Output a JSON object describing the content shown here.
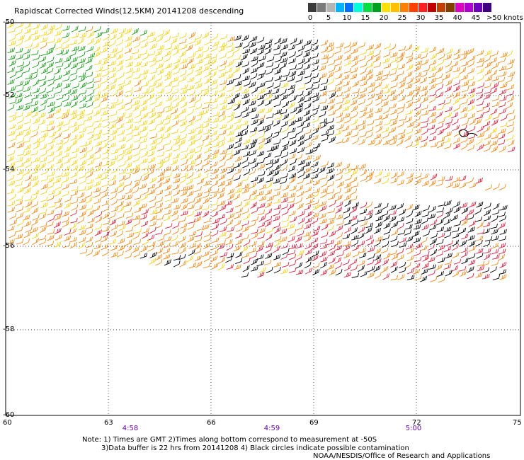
{
  "title": "Rapidscat Corrected Winds(12.5KM) 20141208 descending",
  "legend": {
    "colors": [
      "#3a3a3a",
      "#7a7a7a",
      "#b4b4b4",
      "#00b4ff",
      "#0070ff",
      "#00ffd8",
      "#00e040",
      "#00a020",
      "#ffe000",
      "#ffc000",
      "#ff8000",
      "#ff4000",
      "#ff2020",
      "#c00000",
      "#c04000",
      "#804000",
      "#e000c0",
      "#b000d0",
      "#7000c0",
      "#400080"
    ],
    "ticks": [
      "0",
      "5",
      "10",
      "15",
      "20",
      "25",
      "30",
      "35",
      "40",
      "45"
    ],
    "unit_label": ">50 knots"
  },
  "map": {
    "lon_labels": [
      "60",
      "63",
      "66",
      "69",
      "72",
      "75"
    ],
    "lat_labels": [
      "-50",
      "-52",
      "-54",
      "-56",
      "-58",
      "-60"
    ],
    "time_labels": [
      "4:58",
      "4:59",
      "5:00"
    ]
  },
  "footnote": {
    "line1": "Note: 1) Times are GMT 2)Times along bottom correspond to measurement at -50S",
    "line2": "3)Data buffer is 22 hrs from 20141208 4) Black circles indicate possible contamination",
    "line3": "NOAA/NESDIS/Office of Research and Applications"
  },
  "wind_colors": {
    "calm": "#1a9a1a",
    "light": "#f2d21c",
    "moderate": "#ee8a1a",
    "strong": "#d8203c",
    "flagged": "#000000"
  }
}
